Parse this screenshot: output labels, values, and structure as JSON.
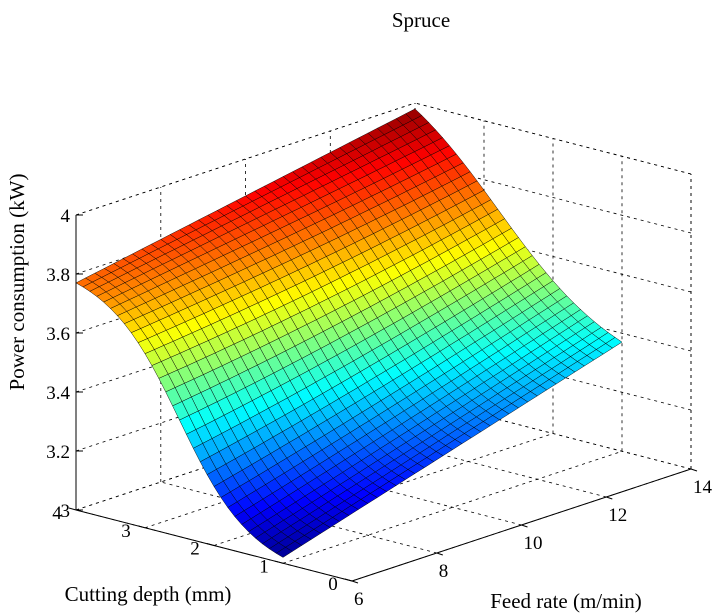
{
  "chart_data": {
    "type": "surface",
    "title": "Spruce",
    "xlabel": "Feed rate (m/min)",
    "ylabel": "Cutting depth (mm)",
    "zlabel": "Power consumption (kW)",
    "xlim": [
      6,
      14
    ],
    "ylim": [
      0,
      4
    ],
    "zlim": [
      3,
      4
    ],
    "x_ticks": [
      "6",
      "8",
      "10",
      "12",
      "14"
    ],
    "y_ticks": [
      "0",
      "1",
      "2",
      "3",
      "4"
    ],
    "z_ticks": [
      "3",
      "3.2",
      "3.4",
      "3.6",
      "3.8",
      "4"
    ],
    "grid": true,
    "colormap": "jet",
    "surface_extent": {
      "x": [
        6,
        14
      ],
      "y": [
        1,
        4
      ]
    },
    "surface_grid": {
      "x": [
        6,
        14
      ],
      "y": [
        1,
        4
      ],
      "nx": 36,
      "ny": 30
    },
    "surface_corners": [
      {
        "x": 6,
        "y": 4,
        "z": 3.77
      },
      {
        "x": 14,
        "y": 4,
        "z": 3.98
      },
      {
        "x": 6,
        "y": 1,
        "z": 3.02
      },
      {
        "x": 14,
        "y": 1,
        "z": 3.37
      }
    ]
  }
}
